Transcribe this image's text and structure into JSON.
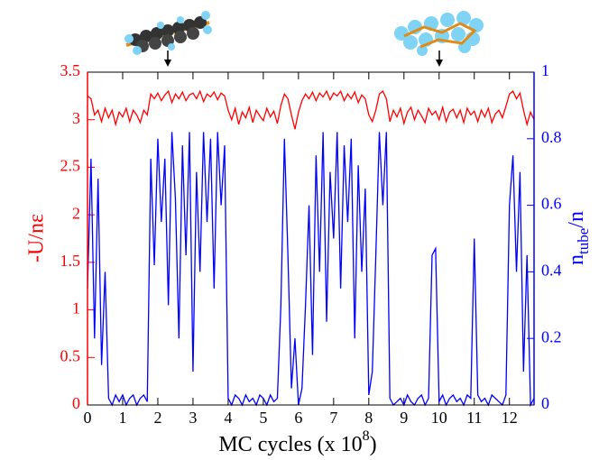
{
  "chart_data": {
    "type": "line",
    "xlabel_parts": [
      "MC cycles (x 10",
      "8",
      ")"
    ],
    "ylabel": "-U/nε",
    "y2label_parts": [
      "n",
      "tube",
      "/n"
    ],
    "x": [
      0,
      0.1,
      0.2,
      0.3,
      0.4,
      0.5,
      0.6,
      0.7,
      0.8,
      0.9,
      1,
      1.1,
      1.2,
      1.3,
      1.4,
      1.5,
      1.6,
      1.7,
      1.8,
      1.9,
      2,
      2.1,
      2.2,
      2.3,
      2.4,
      2.5,
      2.6,
      2.7,
      2.8,
      2.9,
      3,
      3.1,
      3.2,
      3.3,
      3.4,
      3.5,
      3.6,
      3.7,
      3.8,
      3.9,
      4,
      4.1,
      4.2,
      4.3,
      4.4,
      4.5,
      4.6,
      4.7,
      4.8,
      4.9,
      5,
      5.1,
      5.2,
      5.3,
      5.4,
      5.5,
      5.6,
      5.7,
      5.8,
      5.9,
      6,
      6.1,
      6.2,
      6.3,
      6.4,
      6.5,
      6.6,
      6.7,
      6.8,
      6.9,
      7,
      7.1,
      7.2,
      7.3,
      7.4,
      7.5,
      7.6,
      7.7,
      7.8,
      7.9,
      8,
      8.1,
      8.2,
      8.3,
      8.4,
      8.5,
      8.6,
      8.7,
      8.8,
      8.9,
      9,
      9.1,
      9.2,
      9.3,
      9.4,
      9.5,
      9.6,
      9.7,
      9.8,
      9.9,
      10,
      10.1,
      10.2,
      10.3,
      10.4,
      10.5,
      10.6,
      10.7,
      10.8,
      10.9,
      11,
      11.1,
      11.2,
      11.3,
      11.4,
      11.5,
      11.6,
      11.7,
      11.8,
      11.9,
      12,
      12.1,
      12.2,
      12.3,
      12.4,
      12.5,
      12.6,
      12.7
    ],
    "series": [
      {
        "color": "#ff0000",
        "axis": "y",
        "values": [
          3.25,
          3.22,
          3.05,
          3.1,
          2.98,
          3.12,
          3.02,
          3.1,
          2.95,
          3.08,
          3.03,
          3.12,
          2.98,
          3.1,
          3.05,
          2.97,
          3.1,
          3.05,
          3.27,
          3.22,
          3.28,
          3.2,
          3.26,
          3.3,
          3.18,
          3.27,
          3.22,
          3.29,
          3.2,
          3.26,
          3.28,
          3.22,
          3.3,
          3.19,
          3.27,
          3.24,
          3.29,
          3.21,
          3.28,
          3.25,
          3.1,
          3.0,
          3.12,
          2.95,
          3.08,
          3.02,
          3.13,
          2.97,
          3.1,
          3.04,
          2.99,
          3.12,
          3.03,
          3.09,
          2.96,
          3.15,
          3.27,
          3.22,
          3.05,
          2.9,
          3.08,
          3.2,
          3.27,
          3.22,
          3.29,
          3.2,
          3.28,
          3.24,
          3.3,
          3.21,
          3.28,
          3.25,
          3.3,
          3.2,
          3.27,
          3.22,
          3.29,
          3.18,
          3.26,
          3.22,
          3.05,
          2.98,
          3.1,
          3.27,
          3.3,
          3.22,
          2.98,
          3.1,
          3.03,
          3.12,
          2.96,
          3.08,
          3.13,
          3.0,
          3.1,
          3.04,
          2.97,
          3.12,
          3.05,
          3.09,
          3.0,
          3.13,
          2.98,
          3.08,
          3.11,
          3.02,
          3.1,
          2.97,
          3.12,
          3.05,
          3.09,
          2.98,
          3.1,
          3.03,
          3.12,
          2.97,
          3.06,
          3.1,
          3.02,
          3.14,
          3.27,
          3.3,
          3.22,
          3.28,
          3.1,
          2.95,
          3.08,
          3.0
        ]
      },
      {
        "color": "#0000ff",
        "axis": "y2",
        "values": [
          0.35,
          0.74,
          0.2,
          0.68,
          0.12,
          0.4,
          0.02,
          0.0,
          0.03,
          0.01,
          0.03,
          0.0,
          0.02,
          0.03,
          0.0,
          0.02,
          0.03,
          0.01,
          0.74,
          0.42,
          0.8,
          0.55,
          0.74,
          0.3,
          0.82,
          0.62,
          0.2,
          0.78,
          0.45,
          0.82,
          0.1,
          0.7,
          0.4,
          0.82,
          0.55,
          0.8,
          0.35,
          0.82,
          0.6,
          0.78,
          0.02,
          0.0,
          0.03,
          0.02,
          0.0,
          0.03,
          0.01,
          0.02,
          0.0,
          0.03,
          0.02,
          0.0,
          0.03,
          0.01,
          0.02,
          0.3,
          0.8,
          0.45,
          0.05,
          0.2,
          0.0,
          0.05,
          0.3,
          0.6,
          0.15,
          0.75,
          0.4,
          0.82,
          0.25,
          0.7,
          0.5,
          0.82,
          0.35,
          0.78,
          0.55,
          0.8,
          0.2,
          0.72,
          0.4,
          0.65,
          0.03,
          0.1,
          0.45,
          0.82,
          0.6,
          0.82,
          0.02,
          0.0,
          0.01,
          0.02,
          0.0,
          0.03,
          0.01,
          0.0,
          0.02,
          0.03,
          0.0,
          0.02,
          0.45,
          0.47,
          0.01,
          0.03,
          0.0,
          0.02,
          0.03,
          0.01,
          0.02,
          0.0,
          0.03,
          0.02,
          0.5,
          0.03,
          0.01,
          0.02,
          0.0,
          0.03,
          0.02,
          0.01,
          0.0,
          0.03,
          0.6,
          0.75,
          0.4,
          0.7,
          0.1,
          0.45,
          0.0,
          0.02
        ]
      }
    ],
    "xlim": [
      0,
      12.7
    ],
    "xticks": [
      0,
      1,
      2,
      3,
      4,
      5,
      6,
      7,
      8,
      9,
      10,
      11,
      12
    ],
    "ylim": [
      0,
      3.5
    ],
    "yticks": [
      0,
      0.5,
      1,
      1.5,
      2,
      2.5,
      3,
      3.5
    ],
    "ycolor": "#ff0000",
    "y2lim": [
      0,
      1
    ],
    "y2ticks": [
      0,
      0.2,
      0.4,
      0.6,
      0.8,
      1
    ],
    "y2color": "#0000ff"
  }
}
